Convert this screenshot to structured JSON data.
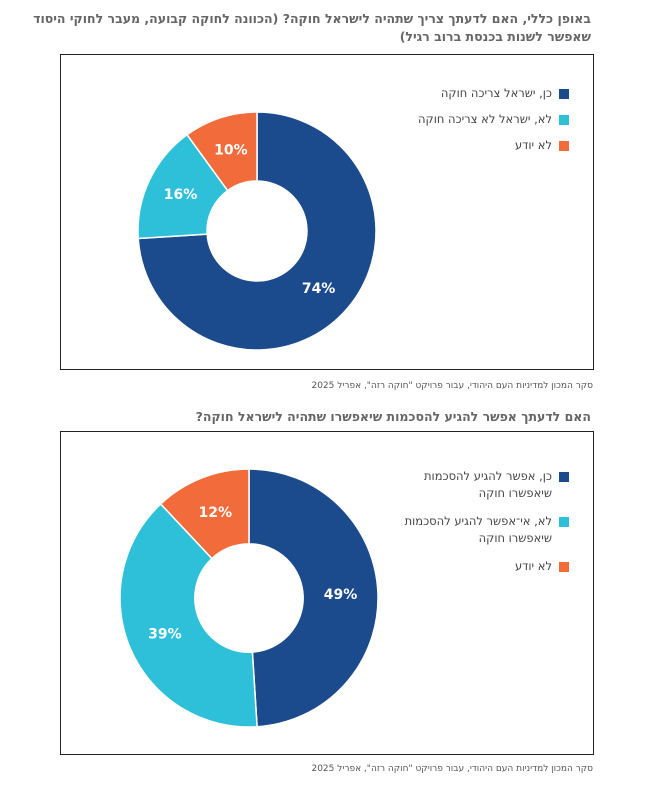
{
  "chart_data": [
    {
      "type": "pie",
      "title": "באופן כללי, האם לדעתך צריך שתהיה לישראל חוקה? (הכוונה לחוקה קבועה, מעבר לחוקי היסוד שאפשר לשנות בכנסת ברוב רגיל)",
      "categories": [
        "כן, ישראל צריכה חוקה",
        "לא, ישראל לא צריכה חוקה",
        "לא יודע"
      ],
      "values": [
        74,
        16,
        10
      ],
      "value_labels": [
        "74%",
        "16%",
        "10%"
      ],
      "colors": [
        "#1b4a8d",
        "#2ec0d8",
        "#f26b3a"
      ],
      "legend_position": "top-right",
      "source": "סקר המכון למדיניות העם היהודי, עבור פרויקט \"חוקה רזה\", אפריל 2025"
    },
    {
      "type": "pie",
      "title": "האם לדעתך אפשר להגיע להסכמות שיאפשרו שתהיה לישראל חוקה?",
      "categories": [
        "כן, אפשר להגיע להסכמות שיאפשרו חוקה",
        "לא, אי־אפשר להגיע להסכמות שיאפשרו חוקה",
        "לא יודע"
      ],
      "values": [
        49,
        39,
        12
      ],
      "value_labels": [
        "49%",
        "39%",
        "12%"
      ],
      "colors": [
        "#1b4a8d",
        "#2ec0d8",
        "#f26b3a"
      ],
      "legend_position": "top-right",
      "source": "סקר המכון למדיניות העם היהודי, עבור פרויקט \"חוקה רזה\", אפריל 2025"
    }
  ]
}
